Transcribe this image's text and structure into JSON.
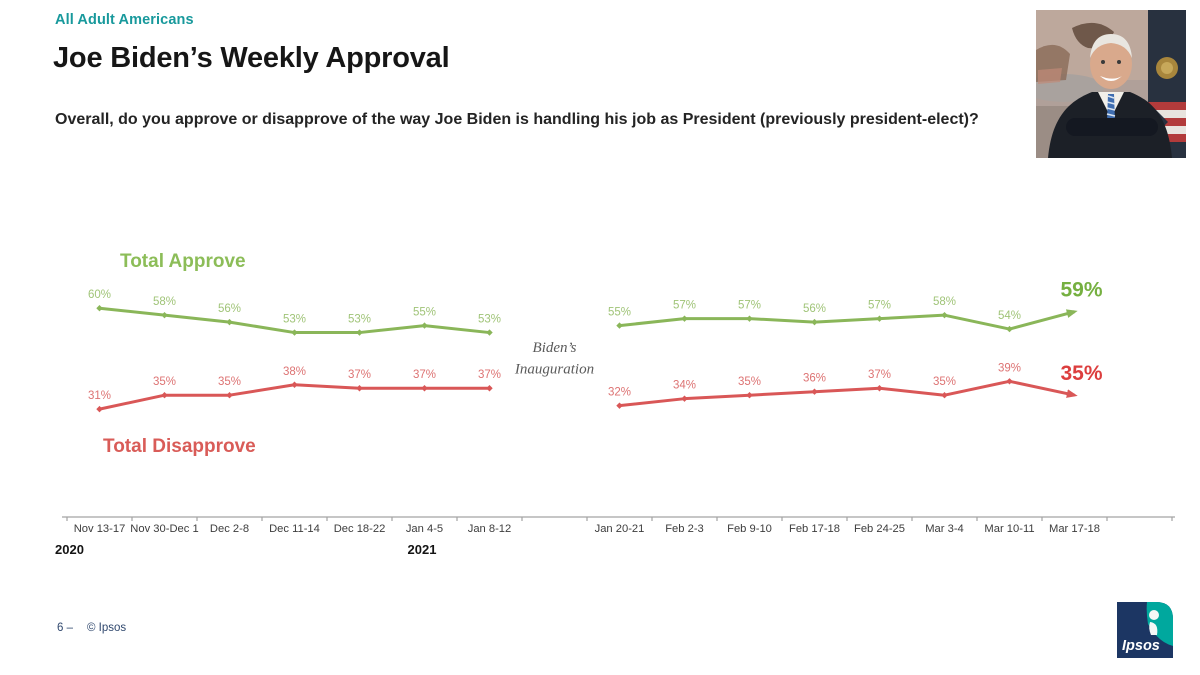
{
  "header": {
    "eyebrow": "All Adult Americans",
    "title": "Joe Biden’s Weekly Approval",
    "subtitle": "Overall, do you approve or disapprove of the way Joe Biden is handling his job as President (previously president-elect)?"
  },
  "footer": {
    "page": "6 –",
    "copyright": "© Ipsos"
  },
  "logo": {
    "text": "Ipsos"
  },
  "images": {
    "portrait_icon": "joe-biden-portrait-photo",
    "logo_icon": "ipsos-logo"
  },
  "colors": {
    "eyebrow": "#18999c",
    "axis": "#a3a3a3",
    "tick_label": "#3d3d3d",
    "year_label": "#141414",
    "annotation": "#5a5a5a",
    "footer": "#30486e",
    "logo_navy": "#1c3663",
    "logo_teal": "#00a89e"
  },
  "chart_data": {
    "type": "line",
    "categories": [
      "Nov 13-17",
      "Nov 30-Dec 1",
      "Dec 2-8",
      "Dec 11-14",
      "Dec 18-22",
      "Jan 4-5",
      "Jan 8-12",
      "",
      "Jan 20-21",
      "Feb 2-3",
      "Feb 9-10",
      "Feb 17-18",
      "Feb 24-25",
      "Mar 3-4",
      "Mar 10-11",
      "Mar 17-18"
    ],
    "gap_index": 7,
    "series": [
      {
        "name": "Total Approve",
        "values": [
          60,
          58,
          56,
          53,
          53,
          55,
          53,
          null,
          55,
          57,
          57,
          56,
          57,
          58,
          54,
          59
        ],
        "color": "#8ab659",
        "label_color": "#a0c478",
        "title_color": "#8cbd58",
        "end_label": "59%",
        "end_color": "#76b041"
      },
      {
        "name": "Total Disapprove",
        "values": [
          31,
          35,
          35,
          38,
          37,
          37,
          37,
          null,
          32,
          34,
          35,
          36,
          37,
          35,
          39,
          35
        ],
        "color": "#d95757",
        "label_color": "#dd7373",
        "title_color": "#d95c58",
        "end_label": "35%",
        "end_color": "#dc3e3e"
      }
    ],
    "annotation": [
      "Biden’s",
      "Inauguration"
    ],
    "years": [
      "2020",
      "2021"
    ],
    "ylim": [
      0,
      65
    ],
    "grid": false,
    "legend": "inline-series-titles"
  }
}
